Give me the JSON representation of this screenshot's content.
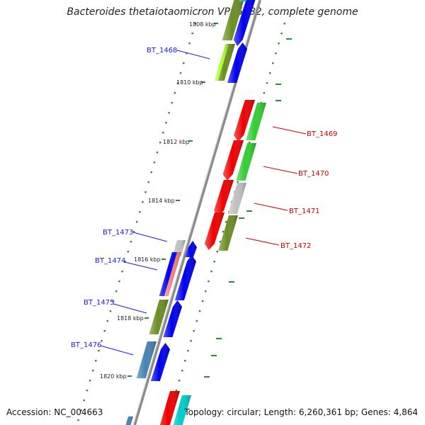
{
  "title": "Bacteroides thetaiotaomicron VPI-5482, complete genome",
  "footer": {
    "accession": "Accession: NC_004663",
    "summary": "Topology: circular; Length: 6,260,361 bp; Genes: 4,864"
  },
  "scale_labels": [
    "1808 kbp",
    "1810 kbp",
    "1812 kbp",
    "1814 kbp",
    "1816 kbp",
    "1818 kbp",
    "1820 kbp"
  ],
  "genes": [
    {
      "label": "BT_1468",
      "strand": "forward",
      "color": "#1a1aff"
    },
    {
      "label": "BT_1469",
      "strand": "reverse",
      "color": "#cc0000"
    },
    {
      "label": "BT_1470",
      "strand": "reverse",
      "color": "#cc0000"
    },
    {
      "label": "BT_1471",
      "strand": "reverse",
      "color": "#cc0000"
    },
    {
      "label": "BT_1472",
      "strand": "reverse",
      "color": "#cc0000"
    },
    {
      "label": "BT_1473",
      "strand": "forward",
      "color": "#1a1aff"
    },
    {
      "label": "BT_1474",
      "strand": "forward",
      "color": "#1a1aff"
    },
    {
      "label": "BT_1475",
      "strand": "forward",
      "color": "#1a1aff"
    },
    {
      "label": "BT_1476",
      "strand": "forward",
      "color": "#1a1aff"
    }
  ],
  "colors": {
    "backbone": "#8c8c8c",
    "forward_label": "#1a1aff",
    "reverse_label": "#cc0000",
    "tick": "#2e8b2e",
    "cog_olive": "#6b8e23",
    "cog_green": "#32cd32",
    "cog_blue": "#0000ee",
    "cog_red": "#ee0000",
    "cog_grey": "#c0c0c0",
    "cog_pink": "#f08080",
    "cog_steel": "#4682b4",
    "cog_cyan": "#00cccc",
    "cog_lime": "#adff2f",
    "cog_teal": "#20b2aa"
  }
}
